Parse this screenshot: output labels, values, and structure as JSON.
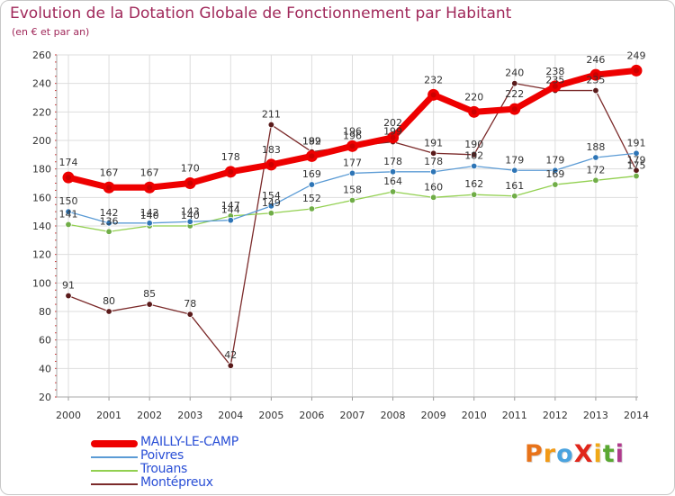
{
  "title": "Evolution de la Dotation Globale de Fonctionnement par Habitant",
  "subtitle": "(en € et par an)",
  "logo": {
    "text": "ProXiti",
    "letters": [
      "P",
      "r",
      "o",
      "X",
      "i",
      "t",
      "i"
    ],
    "colors": [
      "#e8731a",
      "#f29a16",
      "#4aa3df",
      "#e0261b",
      "#f0a816",
      "#5aa832",
      "#b03a8c"
    ]
  },
  "chart_data": {
    "type": "line",
    "title": "Evolution de la Dotation Globale de Fonctionnement par Habitant",
    "subtitle": "(en € et par an)",
    "xlabel": "",
    "ylabel": "",
    "x": [
      "2000",
      "2001",
      "2002",
      "2003",
      "2004",
      "2005",
      "2006",
      "2007",
      "2008",
      "2009",
      "2010",
      "2011",
      "2012",
      "2013",
      "2014"
    ],
    "ylim": [
      20,
      260
    ],
    "yticks": [
      "20",
      "40",
      "60",
      "80",
      "100",
      "120",
      "140",
      "160",
      "180",
      "200",
      "220",
      "240",
      "260"
    ],
    "grid": true,
    "legend_position": "bottom-left",
    "series": [
      {
        "name": "MAILLY-LE-CAMP",
        "color": "#ee0000",
        "marker_color": "#cc0000",
        "emphasis": true,
        "values": [
          174,
          167,
          167,
          170,
          178,
          183,
          189,
          196,
          202,
          232,
          220,
          222,
          238,
          246,
          249
        ],
        "labels": [
          "174",
          "167",
          "167",
          "170",
          "178",
          "183",
          "189",
          "196",
          "202",
          "232",
          "220",
          "222",
          "238",
          "246",
          "249"
        ]
      },
      {
        "name": "Poivres",
        "color": "#5b9bd5",
        "marker_color": "#2e75b6",
        "emphasis": false,
        "values": [
          150,
          142,
          142,
          143,
          144,
          154,
          169,
          177,
          178,
          178,
          182,
          179,
          179,
          188,
          191
        ],
        "labels": [
          "150",
          "142",
          "142",
          "143",
          "144",
          "154",
          "169",
          "177",
          "178",
          "178",
          "182",
          "179",
          "179",
          "188",
          "191"
        ]
      },
      {
        "name": "Trouans",
        "color": "#92d050",
        "marker_color": "#70ad47",
        "emphasis": false,
        "values": [
          141,
          136,
          140,
          140,
          147,
          149,
          152,
          158,
          164,
          160,
          162,
          161,
          169,
          172,
          175
        ],
        "labels": [
          "141",
          "136",
          "140",
          "140",
          "147",
          "149",
          "152",
          "158",
          "164",
          "160",
          "162",
          "161",
          "169",
          "172",
          "175"
        ]
      },
      {
        "name": "Montépreux",
        "color": "#7b2a2a",
        "marker_color": "#5a1a1a",
        "emphasis": false,
        "values": [
          91,
          80,
          85,
          78,
          42,
          211,
          192,
          196,
          199,
          191,
          190,
          240,
          235,
          235,
          179
        ],
        "labels": [
          "91",
          "80",
          "85",
          "78",
          "42",
          "211",
          "192",
          "196",
          "199",
          "191",
          "190",
          "240",
          "235",
          "235",
          "179"
        ]
      }
    ]
  },
  "legend": {
    "items": [
      {
        "label": "MAILLY-LE-CAMP",
        "color": "#ee0000",
        "text_color": "#2a4fd6",
        "thick": true
      },
      {
        "label": "Poivres",
        "color": "#5b9bd5",
        "text_color": "#2a4fd6",
        "thick": false
      },
      {
        "label": "Trouans",
        "color": "#92d050",
        "text_color": "#2a4fd6",
        "thick": false
      },
      {
        "label": "Montépreux",
        "color": "#7b2a2a",
        "text_color": "#2a4fd6",
        "thick": false
      }
    ]
  }
}
